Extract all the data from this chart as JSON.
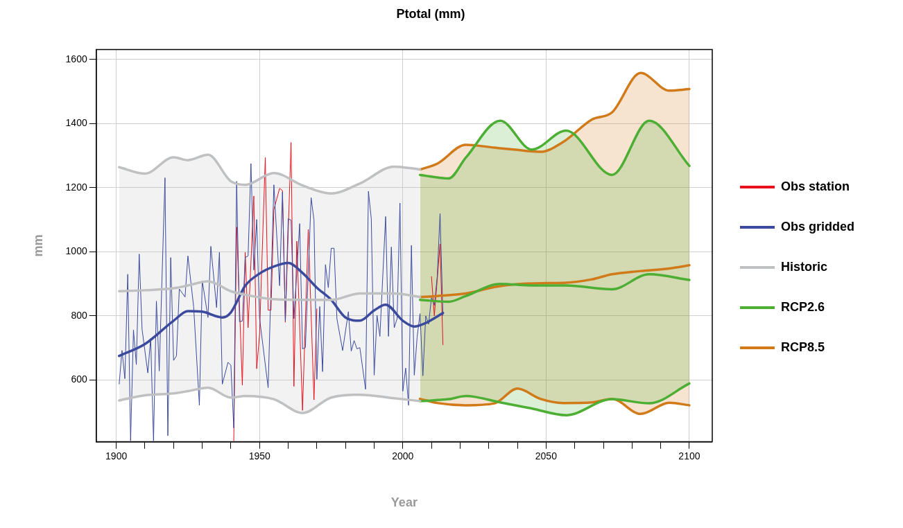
{
  "chart_data": {
    "type": "line",
    "title": "Ptotal (mm)",
    "xlabel": "Year",
    "ylabel": "mm",
    "xlim": [
      1893,
      2108
    ],
    "xticks": [
      1900,
      {
        "value": 1910,
        "label": null
      },
      {
        "value": 1920,
        "label": null
      },
      {
        "value": 1930,
        "label": null
      },
      {
        "value": 1940,
        "label": null
      },
      1950,
      {
        "value": 1960,
        "label": null
      },
      {
        "value": 1970,
        "label": null
      },
      {
        "value": 1980,
        "label": null
      },
      {
        "value": 1990,
        "label": null
      },
      2000,
      {
        "value": 2010,
        "label": null
      },
      {
        "value": 2020,
        "label": null
      },
      {
        "value": 2030,
        "label": null
      },
      {
        "value": 2040,
        "label": null
      },
      2050,
      {
        "value": 2060,
        "label": null
      },
      {
        "value": 2070,
        "label": null
      },
      {
        "value": 2080,
        "label": null
      },
      {
        "value": 2090,
        "label": null
      },
      2100
    ],
    "ylim": [
      407,
      1631
    ],
    "yticks": [
      600,
      800,
      1000,
      1200,
      1400,
      1600
    ],
    "grid": true,
    "legend": "right",
    "line_style": "solid",
    "marker": "none",
    "series": [
      {
        "name": "Obs station",
        "color": "#e8101c",
        "x": [
          1941,
          1942,
          1944,
          1945,
          1946,
          1948,
          1949,
          1950,
          1952,
          1953,
          1954,
          1955,
          1957,
          1958,
          1959,
          1961,
          1962,
          1963,
          1965,
          1967,
          1969,
          1970,
          1990,
          2010,
          2011,
          2013,
          2014
        ],
        "values": [
          410,
          1077,
          584,
          998,
          763,
          1174,
          635,
          741,
          1294,
          818,
          818,
          1132,
          1198,
          1191,
          780,
          1341,
          580,
          1033,
          505,
          1070,
          538,
          822,
          null,
          923,
          800,
          1024,
          710
        ]
      },
      {
        "name": "Historic",
        "color": "#bfc0c2",
        "x": [
          1901,
          1910,
          1920,
          1925,
          1932,
          1940,
          1945,
          1955,
          1965,
          1975,
          1985,
          1997,
          2006
        ],
        "values": [
          877,
          880,
          886,
          895,
          908,
          877,
          866,
          852,
          850,
          850,
          870,
          870,
          859
        ],
        "lower": [
          536,
          552,
          558,
          565,
          576,
          545,
          550,
          540,
          497,
          545,
          554,
          543,
          534
        ],
        "upper": [
          1264,
          1244,
          1295,
          1286,
          1303,
          1220,
          1209,
          1246,
          1207,
          1182,
          1213,
          1266,
          1257
        ]
      },
      {
        "name": "RCP2.6",
        "color": "#4caf33",
        "x": [
          2006,
          2016,
          2022,
          2034,
          2045,
          2057,
          2073,
          2086,
          2100
        ],
        "values": [
          850,
          844,
          862,
          900,
          895,
          895,
          883,
          930,
          912
        ],
        "lower": [
          534,
          540,
          550,
          530,
          511,
          490,
          540,
          527,
          589
        ],
        "upper": [
          1240,
          1229,
          1294,
          1409,
          1319,
          1378,
          1240,
          1409,
          1268
        ]
      },
      {
        "name": "RCP8.5",
        "color": "#d07a1a",
        "x": [
          2006,
          2012,
          2022,
          2032,
          2040,
          2048,
          2056,
          2066,
          2073,
          2083,
          2093,
          2100
        ],
        "values": [
          859,
          862,
          870,
          890,
          899,
          902,
          903,
          914,
          930,
          940,
          948,
          958
        ],
        "lower": [
          541,
          528,
          521,
          527,
          573,
          541,
          528,
          530,
          541,
          494,
          529,
          521
        ],
        "upper": [
          1257,
          1275,
          1334,
          1325,
          1318,
          1312,
          1343,
          1413,
          1435,
          1558,
          1503,
          1508
        ]
      },
      {
        "color": "#bfc0c2",
        "x": [
          1901,
          1910,
          1920,
          1925,
          1932,
          1940,
          1945,
          1955,
          1965,
          1975,
          1985,
          1997,
          2006
        ],
        "values": [
          1264,
          1244,
          1295,
          1286,
          1303,
          1220,
          1209,
          1246,
          1207,
          1182,
          1213,
          1266,
          1257
        ]
      },
      {
        "color": "#bfc0c2",
        "x": [
          1901,
          1910,
          1920,
          1925,
          1932,
          1940,
          1945,
          1955,
          1965,
          1975,
          1985,
          1997,
          2006
        ],
        "values": [
          536,
          552,
          558,
          565,
          576,
          545,
          550,
          540,
          497,
          545,
          554,
          543,
          534
        ]
      },
      {
        "color": "#4caf33",
        "x": [
          2006,
          2016,
          2022,
          2034,
          2045,
          2057,
          2073,
          2086,
          2100
        ],
        "values": [
          1240,
          1229,
          1294,
          1409,
          1319,
          1378,
          1240,
          1409,
          1268
        ]
      },
      {
        "color": "#4caf33",
        "x": [
          2006,
          2016,
          2022,
          2034,
          2045,
          2057,
          2073,
          2086,
          2100
        ],
        "values": [
          534,
          540,
          550,
          530,
          511,
          490,
          540,
          527,
          589
        ]
      },
      {
        "color": "#d07a1a",
        "x": [
          2006,
          2012,
          2022,
          2032,
          2040,
          2048,
          2056,
          2066,
          2073,
          2083,
          2093,
          2100
        ],
        "values": [
          1257,
          1275,
          1334,
          1325,
          1318,
          1312,
          1343,
          1413,
          1435,
          1558,
          1503,
          1508
        ]
      },
      {
        "color": "#d07a1a",
        "x": [
          2006,
          2012,
          2022,
          2032,
          2040,
          2048,
          2056,
          2066,
          2073,
          2083,
          2093,
          2100
        ],
        "values": [
          541,
          528,
          521,
          527,
          573,
          541,
          528,
          530,
          541,
          494,
          529,
          521
        ]
      },
      {
        "color": "#3b4a9c",
        "x": [
          1901,
          1910,
          1920,
          1925,
          1930,
          1937,
          1940,
          1945,
          1950,
          1955,
          1960,
          1965,
          1970,
          1975,
          1980,
          1985,
          1990,
          1994,
          2000,
          2004,
          2008,
          2014
        ],
        "values": [
          675,
          712,
          785,
          815,
          813,
          795,
          811,
          894,
          932,
          954,
          965,
          934,
          888,
          850,
          795,
          785,
          817,
          835,
          785,
          767,
          778,
          809
        ]
      },
      {
        "name": "Obs gridded",
        "color": "#3b4a9c",
        "x": [
          1901,
          1902,
          1903,
          1904,
          1905,
          1906,
          1907,
          1908,
          1909,
          1911,
          1912,
          1913,
          1914,
          1915,
          1917,
          1918,
          1919,
          1920,
          1921,
          1922,
          1924,
          1925,
          1927,
          1929,
          1930,
          1932,
          1933,
          1935,
          1936,
          1937,
          1939,
          1940,
          1941,
          1942,
          1943,
          1944,
          1945,
          1946,
          1947,
          1948,
          1949,
          1950,
          1953,
          1955,
          1957,
          1958,
          1959,
          1960,
          1961,
          1962,
          1964,
          1965,
          1966,
          1968,
          1969,
          1970,
          1971,
          1972,
          1973,
          1974,
          1975,
          1976,
          1977,
          1979,
          1981,
          1982,
          1983,
          1984,
          1985,
          1987,
          1988,
          1989,
          1990,
          1991,
          1992,
          1994,
          1995,
          1996,
          1997,
          1998,
          1999,
          2000,
          2001,
          2002,
          2003,
          2004,
          2005,
          2006,
          2007,
          2008,
          2009,
          2010,
          2011,
          2012,
          2013,
          2014
        ],
        "values": [
          587,
          692,
          604,
          930,
          410,
          756,
          648,
          993,
          758,
          622,
          730,
          410,
          846,
          628,
          1231,
          426,
          982,
          661,
          675,
          884,
          859,
          987,
          829,
          521,
          910,
          795,
          1017,
          826,
          998,
          587,
          655,
          646,
          450,
          1220,
          782,
          784,
          982,
          987,
          1275,
          943,
          1101,
          793,
          576,
          1209,
          894,
          1187,
          784,
          1103,
          1099,
          791,
          1088,
          697,
          701,
          1169,
          1099,
          602,
          829,
          626,
          960,
          888,
          1011,
          1011,
          791,
          692,
          813,
          690,
          723,
          697,
          701,
          571,
          1189,
          1103,
          615,
          802,
          736,
          1110,
          736,
          1015,
          763,
          791,
          1152,
          565,
          637,
          521,
          1020,
          615,
          734,
          807,
          613,
          800,
          774,
          857,
          833,
          921,
          1119,
          802
        ]
      }
    ]
  }
}
